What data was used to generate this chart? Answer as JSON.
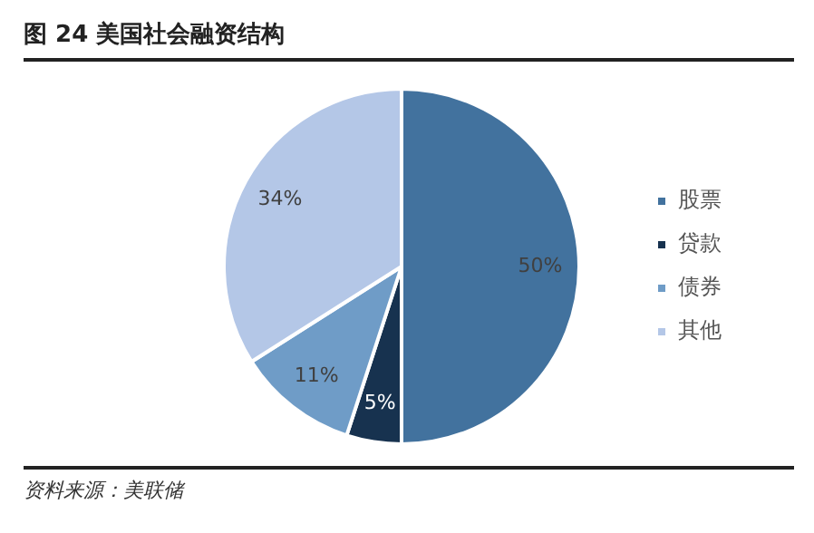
{
  "chart_data": {
    "type": "pie",
    "title": "图 24 美国社会融资结构",
    "categories": [
      "股票",
      "贷款",
      "债券",
      "其他"
    ],
    "values": [
      50,
      5,
      11,
      34
    ],
    "colors": [
      "#42729e",
      "#17324f",
      "#6f9cc7",
      "#b4c7e7"
    ],
    "value_labels": [
      "50%",
      "5%",
      "11%",
      "34%"
    ],
    "legend": "right",
    "annotations": [
      "资料来源：美联储"
    ]
  }
}
